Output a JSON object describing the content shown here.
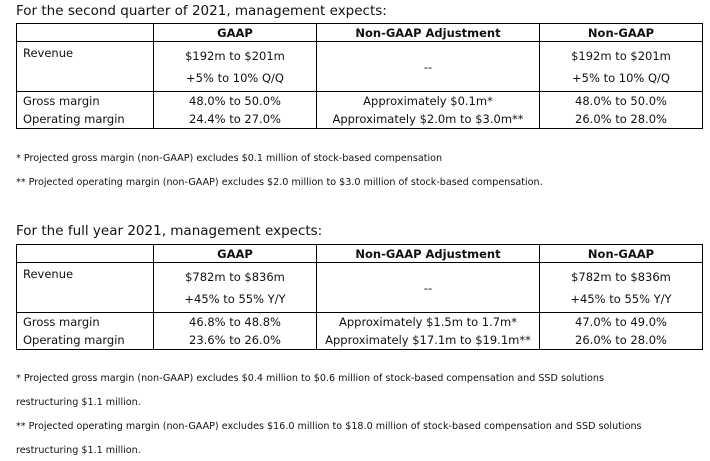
{
  "q2": {
    "intro": "For the second quarter of 2021, management expects:",
    "headers": [
      "",
      "GAAP",
      "Non-GAAP Adjustment",
      "Non-GAAP"
    ],
    "revenue": {
      "label": "Revenue",
      "gaap_range": "$192m to $201m",
      "gaap_growth": "+5% to 10% Q/Q",
      "adjustment": "--",
      "nongaap_range": "$192m to $201m",
      "nongaap_growth": "+5% to 10% Q/Q"
    },
    "gross_margin": {
      "label": "Gross margin",
      "gaap": "48.0% to 50.0%",
      "adjustment": "Approximately $0.1m*",
      "nongaap": "48.0% to 50.0%"
    },
    "operating_margin": {
      "label": "Operating margin",
      "gaap": "24.4% to 27.0%",
      "adjustment": "Approximately $2.0m to $3.0m**",
      "nongaap": "26.0% to 28.0%"
    },
    "notes": [
      "* Projected gross margin (non-GAAP) excludes $0.1 million of stock-based compensation",
      "** Projected operating margin (non-GAAP) excludes $2.0 million to $3.0 million of stock-based compensation."
    ]
  },
  "fy": {
    "intro": "For the full year 2021, management expects:",
    "headers": [
      "",
      "GAAP",
      "Non-GAAP Adjustment",
      "Non-GAAP"
    ],
    "revenue": {
      "label": "Revenue",
      "gaap_range": "$782m to $836m",
      "gaap_growth": "+45% to 55% Y/Y",
      "adjustment": "--",
      "nongaap_range": "$782m to $836m",
      "nongaap_growth": "+45% to 55% Y/Y"
    },
    "gross_margin": {
      "label": "Gross margin",
      "gaap": "46.8% to 48.8%",
      "adjustment": "Approximately $1.5m to 1.7m*",
      "nongaap": "47.0% to 49.0%"
    },
    "operating_margin": {
      "label": "Operating margin",
      "gaap": "23.6% to 26.0%",
      "adjustment": "Approximately $17.1m to $19.1m**",
      "nongaap": "26.0% to 28.0%"
    },
    "notes": [
      "* Projected gross margin (non-GAAP) excludes $0.4 million to $0.6 million of stock-based compensation and SSD solutions",
      "restructuring $1.1 million.",
      "** Projected operating margin (non-GAAP) excludes $16.0 million to $18.0 million of stock-based compensation and SSD solutions",
      "restructuring $1.1 million."
    ]
  }
}
